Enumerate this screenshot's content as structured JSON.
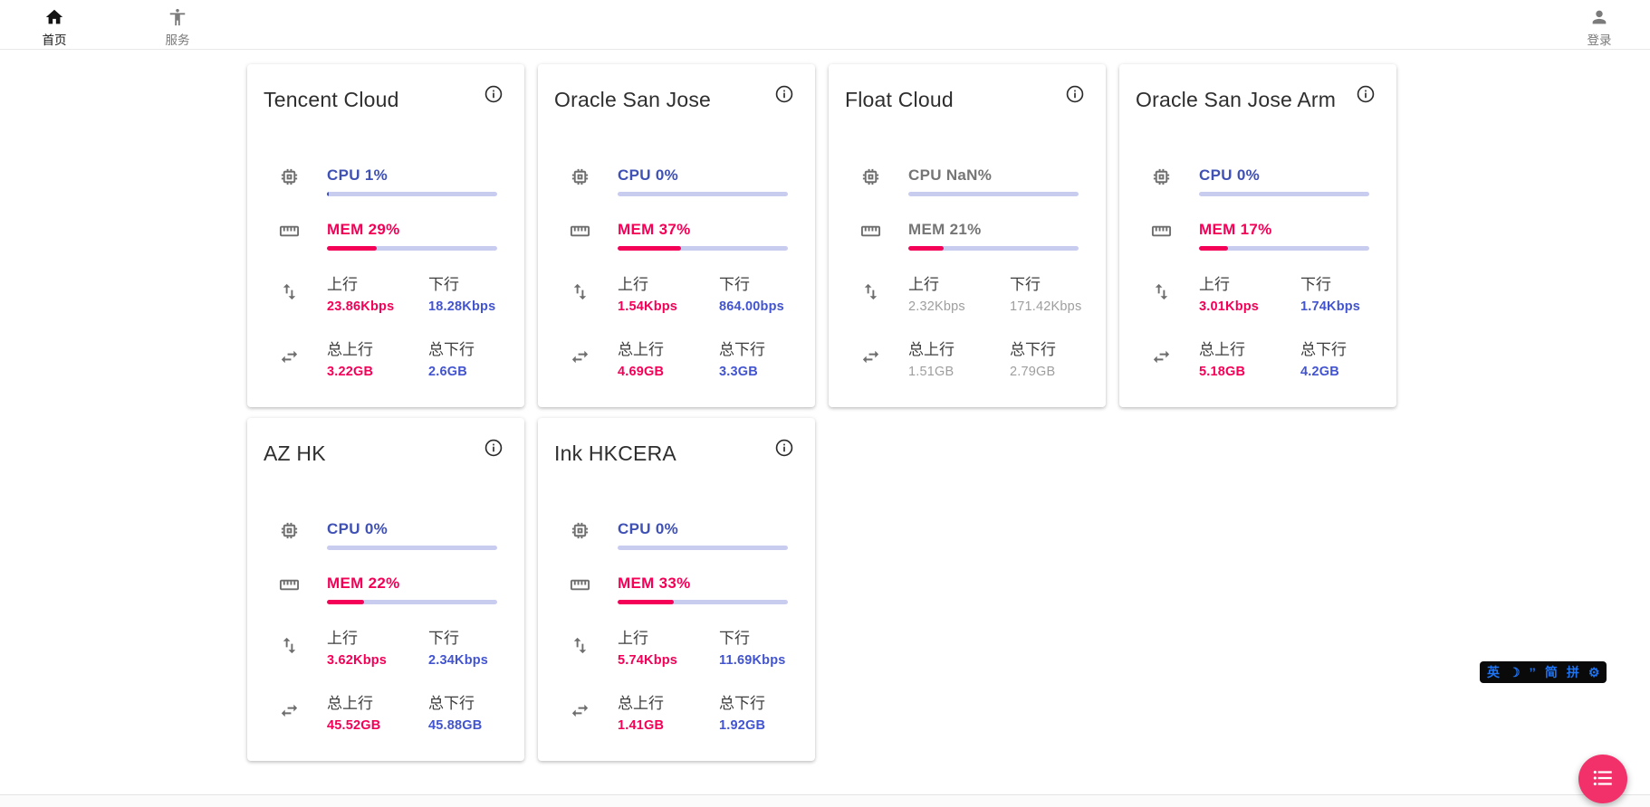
{
  "navbar": {
    "home": {
      "label": "首页"
    },
    "services": {
      "label": "服务"
    },
    "login": {
      "label": "登录"
    }
  },
  "labels": {
    "up": "上行",
    "down": "下行",
    "total_up": "总上行",
    "total_down": "总下行"
  },
  "cards": [
    {
      "title": "Tencent Cloud",
      "state": "online",
      "cpu": {
        "text": "CPU 1%",
        "percent": 1
      },
      "mem": {
        "text": "MEM 29%",
        "percent": 29
      },
      "net": {
        "up": "23.86Kbps",
        "down": "18.28Kbps"
      },
      "total": {
        "up": "3.22GB",
        "down": "2.6GB"
      }
    },
    {
      "title": "Oracle San Jose",
      "state": "online",
      "cpu": {
        "text": "CPU 0%",
        "percent": 0
      },
      "mem": {
        "text": "MEM 37%",
        "percent": 37
      },
      "net": {
        "up": "1.54Kbps",
        "down": "864.00bps"
      },
      "total": {
        "up": "4.69GB",
        "down": "3.3GB"
      }
    },
    {
      "title": "Float Cloud",
      "state": "offline",
      "cpu": {
        "text": "CPU NaN%",
        "percent": null
      },
      "mem": {
        "text": "MEM 21%",
        "percent": 21
      },
      "net": {
        "up": "2.32Kbps",
        "down": "171.42Kbps"
      },
      "total": {
        "up": "1.51GB",
        "down": "2.79GB"
      }
    },
    {
      "title": "Oracle San Jose Arm",
      "state": "online",
      "cpu": {
        "text": "CPU 0%",
        "percent": 0
      },
      "mem": {
        "text": "MEM 17%",
        "percent": 17
      },
      "net": {
        "up": "3.01Kbps",
        "down": "1.74Kbps"
      },
      "total": {
        "up": "5.18GB",
        "down": "4.2GB"
      }
    },
    {
      "title": "AZ HK",
      "state": "online",
      "cpu": {
        "text": "CPU 0%",
        "percent": 0
      },
      "mem": {
        "text": "MEM 22%",
        "percent": 22
      },
      "net": {
        "up": "3.62Kbps",
        "down": "2.34Kbps"
      },
      "total": {
        "up": "45.52GB",
        "down": "45.88GB"
      }
    },
    {
      "title": "Ink HKCERA",
      "state": "online",
      "cpu": {
        "text": "CPU 0%",
        "percent": 0
      },
      "mem": {
        "text": "MEM 33%",
        "percent": 33
      },
      "net": {
        "up": "5.74Kbps",
        "down": "11.69Kbps"
      },
      "total": {
        "up": "1.41GB",
        "down": "1.92GB"
      }
    }
  ],
  "ime_bar": {
    "items": [
      "英",
      "☽",
      "’’",
      "简",
      "拼",
      "⚙"
    ]
  },
  "colors": {
    "accent_indigo": "#3f51b5",
    "accent_pink": "#f50057",
    "value_blue": "#4254d0",
    "offline_gray": "#9e9e9e",
    "fab_pink": "#f2306a"
  }
}
